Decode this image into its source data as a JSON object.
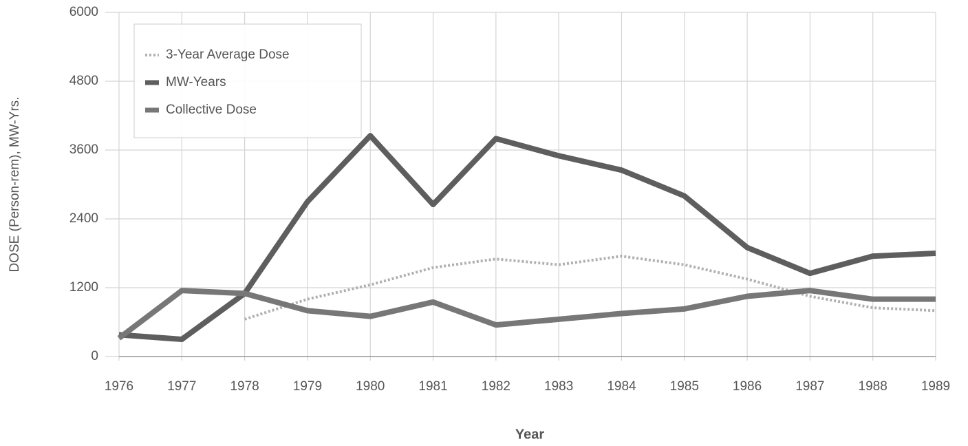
{
  "chart_data": {
    "type": "line",
    "x_label": "Year",
    "y_label": "DOSE (Person-rem), MW-Yrs.",
    "categories": [
      "1976",
      "1977",
      "1978",
      "1979",
      "1980",
      "1981",
      "1982",
      "1983",
      "1984",
      "1985",
      "1986",
      "1987",
      "1988",
      "1989"
    ],
    "series": [
      {
        "name": "3-Year Average Dose",
        "color": "#b0b0b0",
        "dash": true,
        "values": [
          null,
          null,
          650,
          1000,
          1250,
          1550,
          1700,
          1600,
          1750,
          1600,
          1350,
          1050,
          850,
          800
        ]
      },
      {
        "name": "MW-Years",
        "color": "#5e5e5e",
        "dash": false,
        "values": [
          380,
          300,
          1100,
          2700,
          3850,
          2650,
          3800,
          3500,
          3250,
          2800,
          1900,
          1450,
          1750,
          1800
        ]
      },
      {
        "name": "Collective Dose",
        "color": "#777777",
        "dash": false,
        "values": [
          320,
          1150,
          1100,
          800,
          700,
          950,
          550,
          650,
          750,
          830,
          1050,
          1150,
          1000,
          1000
        ]
      }
    ],
    "ylim": [
      0,
      6000
    ],
    "yticks": [
      0,
      1200,
      2400,
      3600,
      4800,
      6000
    ],
    "grid": true,
    "legend": "upper left"
  }
}
